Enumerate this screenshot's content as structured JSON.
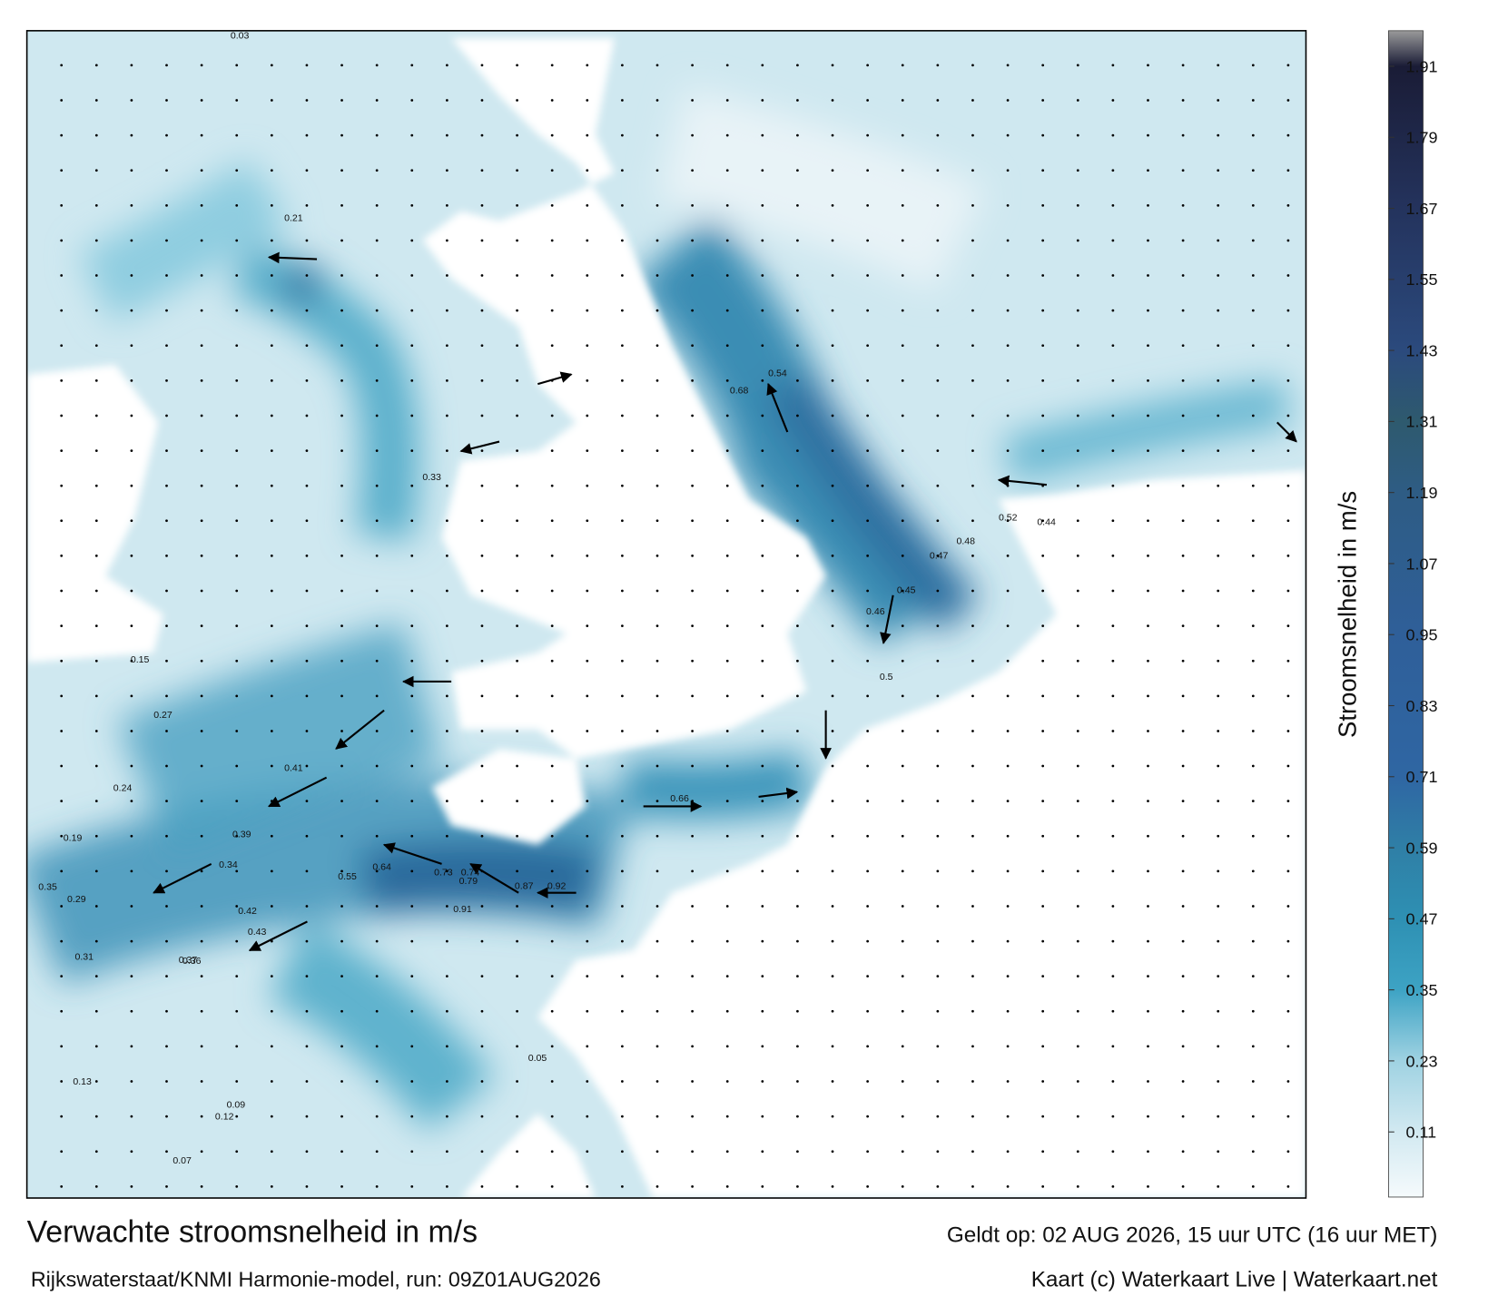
{
  "header": {
    "title": "Verwachte stroomsnelheid in m/s",
    "subtitle": "Rijkswaterstaat/KNMI Harmonie-model, run: 09Z01AUG2026",
    "valid": "Geldt op: 02 AUG 2026, 15 uur UTC (16 uur MET)",
    "credit": "Kaart (c) Waterkaart Live | Waterkaart.net"
  },
  "colorbar": {
    "label": "Stroomsnelheid in m/s",
    "ylim": [
      0,
      1.97
    ],
    "yticks": [
      0.11,
      0.23,
      0.35,
      0.47,
      0.59,
      0.71,
      0.83,
      0.95,
      1.07,
      1.19,
      1.31,
      1.43,
      1.55,
      1.67,
      1.79,
      1.91
    ],
    "color_stops": [
      {
        "value": 0,
        "color": "#f5fafc"
      },
      {
        "value": 0.11,
        "color": "#d2e9f1"
      },
      {
        "value": 0.23,
        "color": "#9fd2e2"
      },
      {
        "value": 0.35,
        "color": "#3da3c4"
      },
      {
        "value": 0.47,
        "color": "#2e90b3"
      },
      {
        "value": 0.59,
        "color": "#2f7fa6"
      },
      {
        "value": 0.71,
        "color": "#2f66a3"
      },
      {
        "value": 0.95,
        "color": "#2f5f99"
      },
      {
        "value": 1.19,
        "color": "#2e5c84"
      },
      {
        "value": 1.31,
        "color": "#2e5a6e"
      },
      {
        "value": 1.43,
        "color": "#2b4a7d"
      },
      {
        "value": 1.67,
        "color": "#24335d"
      },
      {
        "value": 1.91,
        "color": "#1a1c36"
      },
      {
        "value": 1.97,
        "color": "#9a9a9a"
      }
    ]
  },
  "map_labels": [
    0.87,
    0.92,
    0.73,
    0.74,
    0.79,
    0.91,
    0.55,
    0.64,
    0.42,
    0.43,
    0.39,
    0.41,
    0.34,
    0.35,
    0.37,
    0.36,
    0.27,
    0.29,
    0.31,
    0.24,
    0.19,
    0.66,
    0.68,
    0.54,
    0.5,
    0.46,
    0.48,
    0.44,
    0.45,
    0.47,
    0.52,
    0.33,
    0.21,
    0.15,
    0.12,
    0.13,
    0.09,
    0.07,
    0.05,
    0.03
  ]
}
